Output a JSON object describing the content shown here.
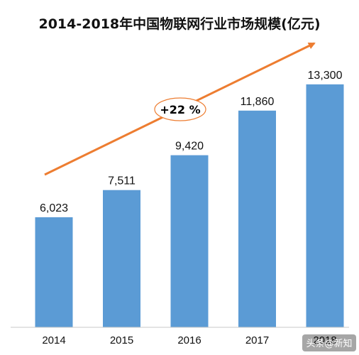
{
  "chart_data": {
    "type": "bar",
    "title": "2014-2018年中国物联网行业市场规模(亿元)",
    "categories": [
      "2014",
      "2015",
      "2016",
      "2017",
      "2018"
    ],
    "values": [
      6023,
      7511,
      9420,
      11860,
      13300
    ],
    "value_labels": [
      "6,023",
      "7,511",
      "9,420",
      "11,860",
      "13,300"
    ],
    "ylim": [
      0,
      14000
    ],
    "grid": false,
    "bar_color": "#5B9BD5",
    "annotation": {
      "text": "+22 %",
      "meaning": "growth trend arrow",
      "color": "#ED7D31"
    }
  },
  "watermark": {
    "text": "头条@新知"
  }
}
